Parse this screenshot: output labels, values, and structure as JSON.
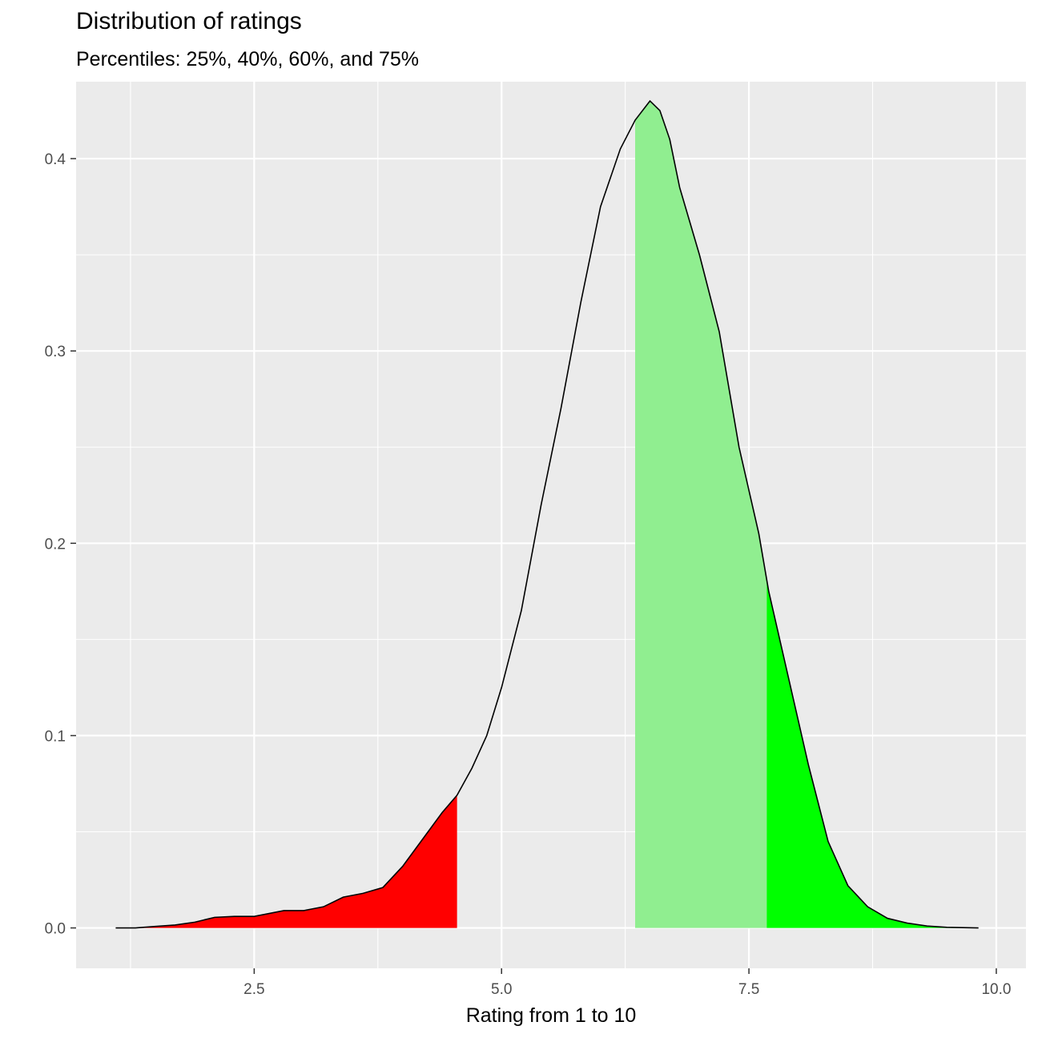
{
  "chart_data": {
    "type": "area",
    "title": "Distribution of ratings",
    "subtitle": "Percentiles: 25%, 40%, 60%, and 75%",
    "xlabel": "Rating from 1 to 10",
    "ylabel": "",
    "xlim": [
      0.7,
      10.3
    ],
    "ylim": [
      -0.021,
      0.44
    ],
    "x_ticks": [
      2.5,
      5.0,
      7.5,
      10.0
    ],
    "x_tick_labels": [
      "2.5",
      "5.0",
      "7.5",
      "10.0"
    ],
    "y_ticks": [
      0.0,
      0.1,
      0.2,
      0.3,
      0.4
    ],
    "y_tick_labels": [
      "0.0",
      "0.1",
      "0.2",
      "0.3",
      "0.4"
    ],
    "grid": true,
    "background": "#ebebeb",
    "density": {
      "x": [
        1.1,
        1.3,
        1.5,
        1.7,
        1.9,
        2.1,
        2.3,
        2.5,
        2.65,
        2.8,
        3.0,
        3.2,
        3.4,
        3.6,
        3.8,
        4.0,
        4.2,
        4.4,
        4.55,
        4.7,
        4.85,
        5.0,
        5.2,
        5.4,
        5.6,
        5.8,
        6.0,
        6.2,
        6.35,
        6.5,
        6.6,
        6.7,
        6.8,
        7.0,
        7.2,
        7.4,
        7.6,
        7.7,
        7.9,
        8.1,
        8.3,
        8.5,
        8.7,
        8.9,
        9.1,
        9.3,
        9.5,
        9.82
      ],
      "y": [
        0.0,
        0.0,
        0.0008,
        0.0015,
        0.003,
        0.0055,
        0.006,
        0.006,
        0.0075,
        0.009,
        0.009,
        0.011,
        0.016,
        0.018,
        0.021,
        0.032,
        0.046,
        0.06,
        0.069,
        0.083,
        0.1,
        0.125,
        0.165,
        0.22,
        0.27,
        0.325,
        0.375,
        0.405,
        0.42,
        0.43,
        0.425,
        0.41,
        0.385,
        0.35,
        0.31,
        0.25,
        0.205,
        0.175,
        0.13,
        0.085,
        0.045,
        0.022,
        0.011,
        0.005,
        0.0025,
        0.001,
        0.0003,
        0.0
      ]
    },
    "regions": [
      {
        "from": 1.1,
        "to": 4.55,
        "color": "#ff0000"
      },
      {
        "from": 6.35,
        "to": 7.68,
        "color": "#90ee90"
      },
      {
        "from": 7.68,
        "to": 9.82,
        "color": "#00ff00"
      }
    ],
    "line_color": "#000000"
  }
}
